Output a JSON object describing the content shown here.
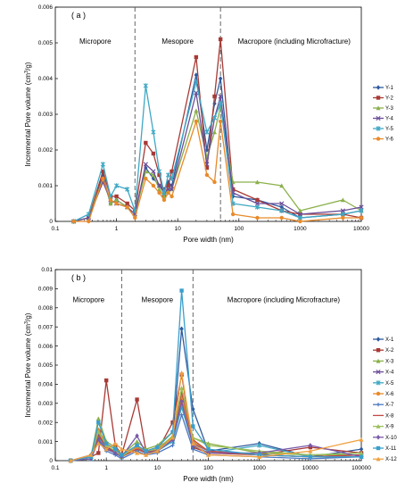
{
  "chart_data": [
    {
      "type": "line",
      "panel_label": "( a )",
      "xlabel": "Pore width (nm)",
      "ylabel_main": "Incremental Pore volume (cm",
      "ylabel_sup": "3",
      "ylabel_end": "/g)",
      "xscale": "log",
      "xlim": [
        0.1,
        10000
      ],
      "ylim": [
        0,
        0.006
      ],
      "xticks": [
        0.1,
        1,
        10,
        100,
        1000,
        10000
      ],
      "xtick_labels": [
        "0.1",
        "1",
        "10",
        "100",
        "1000",
        "10000"
      ],
      "yticks": [
        0,
        0.001,
        0.002,
        0.003,
        0.004,
        0.005,
        0.006
      ],
      "ytick_labels": [
        "0",
        "0.001",
        "0.002",
        "0.003",
        "0.004",
        "0.005",
        "0.006"
      ],
      "dividers": [
        2,
        50
      ],
      "regions": [
        {
          "label": "Micropore",
          "x": 0.45
        },
        {
          "label": "Mesopore",
          "x": 10
        },
        {
          "label": "Macropore (including Microfracture)",
          "x": 800
        }
      ],
      "legend_position": "right",
      "series": [
        {
          "name": "Y-1",
          "color": "#2e5a9e",
          "marker": "diamond",
          "x": [
            0.2,
            0.35,
            0.6,
            0.8,
            1,
            1.5,
            2,
            3,
            4,
            5,
            6,
            7,
            8,
            20,
            30,
            40,
            50,
            80,
            200,
            500,
            1000,
            5000,
            10000
          ],
          "y": [
            0,
            0.0001,
            0.0013,
            0.0005,
            0.0006,
            0.0004,
            0.0002,
            0.0015,
            0.0012,
            0.001,
            0.0009,
            0.0011,
            0.001,
            0.0041,
            0.002,
            0.0033,
            0.004,
            0.0007,
            0.0006,
            0.0004,
            0.0001,
            0.0002,
            0.0003
          ]
        },
        {
          "name": "Y-2",
          "color": "#a83a36",
          "marker": "square",
          "x": [
            0.2,
            0.35,
            0.6,
            0.8,
            1,
            1.5,
            2,
            3,
            4,
            5,
            6,
            7,
            8,
            20,
            30,
            40,
            50,
            80,
            200,
            500,
            1000,
            5000,
            10000
          ],
          "y": [
            0,
            0.0001,
            0.0014,
            0.0007,
            0.0007,
            0.0005,
            0.0003,
            0.0022,
            0.0019,
            0.0013,
            0.0007,
            0.001,
            0.0014,
            0.0046,
            0.0015,
            0.0035,
            0.0051,
            0.0009,
            0.0006,
            0.0003,
            0.0002,
            0.0002,
            0.0001
          ]
        },
        {
          "name": "Y-3",
          "color": "#8ab04a",
          "marker": "triangle",
          "x": [
            0.2,
            0.35,
            0.6,
            0.8,
            1,
            1.5,
            2,
            3,
            4,
            5,
            6,
            7,
            8,
            20,
            30,
            40,
            50,
            80,
            200,
            500,
            1000,
            5000,
            10000
          ],
          "y": [
            0,
            0.0001,
            0.0012,
            0.0005,
            0.0006,
            0.0004,
            0.0002,
            0.0014,
            0.0013,
            0.0009,
            0.0007,
            0.0009,
            0.0009,
            0.0031,
            0.0018,
            0.0025,
            0.0032,
            0.0011,
            0.0011,
            0.001,
            0.0003,
            0.0006,
            0.0003
          ]
        },
        {
          "name": "Y-4",
          "color": "#6b4d99",
          "marker": "x",
          "x": [
            0.2,
            0.35,
            0.6,
            0.8,
            1,
            1.5,
            2,
            3,
            4,
            5,
            6,
            7,
            8,
            20,
            30,
            40,
            50,
            80,
            200,
            500,
            1000,
            5000,
            10000
          ],
          "y": [
            0,
            0.0001,
            0.0011,
            0.0006,
            0.0005,
            0.0004,
            0.0002,
            0.0016,
            0.0014,
            0.001,
            0.0008,
            0.0009,
            0.0009,
            0.0036,
            0.0016,
            0.0029,
            0.0035,
            0.0008,
            0.0005,
            0.0005,
            0.0002,
            0.0003,
            0.0004
          ]
        },
        {
          "name": "Y-5",
          "color": "#3fa8c4",
          "marker": "star",
          "x": [
            0.2,
            0.35,
            0.6,
            0.8,
            1,
            1.5,
            2,
            3,
            4,
            5,
            6,
            7,
            8,
            20,
            30,
            40,
            50,
            80,
            200,
            500,
            1000,
            5000,
            10000
          ],
          "y": [
            0,
            0.0002,
            0.0016,
            0.0007,
            0.001,
            0.0009,
            0.0003,
            0.0038,
            0.0025,
            0.0014,
            0.0008,
            0.0013,
            0.0012,
            0.0039,
            0.0025,
            0.0029,
            0.0033,
            0.0005,
            0.0004,
            0.0003,
            0.0001,
            0.0002,
            0.0003
          ]
        },
        {
          "name": "Y-6",
          "color": "#e88a2a",
          "marker": "circle",
          "x": [
            0.2,
            0.35,
            0.6,
            0.8,
            1,
            1.5,
            2,
            3,
            4,
            5,
            6,
            7,
            8,
            20,
            30,
            40,
            50,
            80,
            200,
            500,
            1000,
            5000,
            10000
          ],
          "y": [
            0,
            0,
            0.0012,
            0.0006,
            0.0005,
            0.0004,
            0.0001,
            0.0012,
            0.001,
            0.0008,
            0.0006,
            0.0008,
            0.0007,
            0.0028,
            0.0013,
            0.0011,
            0.0028,
            0.0002,
            0.0001,
            0.0001,
            0,
            0.0001,
            0.0001
          ]
        }
      ]
    },
    {
      "type": "line",
      "panel_label": "( b )",
      "xlabel": "Pore width (nm)",
      "ylabel_main": "Incremental Pore volume (cm",
      "ylabel_sup": "3",
      "ylabel_end": "/g)",
      "xscale": "log",
      "xlim": [
        0.1,
        100000
      ],
      "ylim": [
        0,
        0.01
      ],
      "xticks": [
        0.1,
        1,
        10,
        100,
        1000,
        10000,
        100000
      ],
      "xtick_labels": [
        "0.1",
        "1",
        "10",
        "100",
        "1000",
        "10000",
        "100000"
      ],
      "yticks": [
        0,
        0.001,
        0.002,
        0.003,
        0.004,
        0.005,
        0.006,
        0.007,
        0.008,
        0.009,
        0.01
      ],
      "ytick_labels": [
        "0",
        "0.001",
        "0.002",
        "0.003",
        "0.004",
        "0.005",
        "0.006",
        "0.007",
        "0.008",
        "0.009",
        "0.01"
      ],
      "dividers": [
        2,
        50
      ],
      "regions": [
        {
          "label": "Micropore",
          "x": 0.45
        },
        {
          "label": "Mesopore",
          "x": 10
        },
        {
          "label": "Macropore (including Microfracture)",
          "x": 3000
        }
      ],
      "legend_position": "right",
      "series": [
        {
          "name": "X-1",
          "color": "#2e5a9e",
          "marker": "diamond",
          "x": [
            0.2,
            0.5,
            0.7,
            1,
            1.5,
            2,
            4,
            6,
            10,
            20,
            30,
            50,
            100,
            1000,
            10000,
            100000
          ],
          "y": [
            0,
            0.0003,
            0.0016,
            0.0008,
            0.0004,
            0.0002,
            0.0008,
            0.0005,
            0.0006,
            0.0012,
            0.0069,
            0.0027,
            0.0005,
            0.0009,
            0.0002,
            0.0006
          ]
        },
        {
          "name": "X-2",
          "color": "#a83a36",
          "marker": "square",
          "x": [
            0.2,
            0.5,
            0.7,
            1,
            1.5,
            2,
            4,
            6,
            10,
            20,
            30,
            50,
            100,
            1000,
            10000,
            100000
          ],
          "y": [
            0,
            0.0002,
            0.0004,
            0.0042,
            0.0008,
            0.0003,
            0.0032,
            0.0005,
            0.0005,
            0.002,
            0.0045,
            0.0007,
            0.0004,
            0.0003,
            0.0007,
            0.0004
          ]
        },
        {
          "name": "X-3",
          "color": "#8ab04a",
          "marker": "triangle",
          "x": [
            0.2,
            0.5,
            0.7,
            1,
            1.5,
            2,
            4,
            6,
            10,
            20,
            30,
            50,
            100,
            1000,
            10000,
            100000
          ],
          "y": [
            0,
            0.0002,
            0.0022,
            0.001,
            0.0007,
            0.0003,
            0.001,
            0.0006,
            0.0008,
            0.0015,
            0.0036,
            0.0012,
            0.0009,
            0.0004,
            0.0003,
            0.0003
          ]
        },
        {
          "name": "X-4",
          "color": "#6b4d99",
          "marker": "x",
          "x": [
            0.2,
            0.5,
            0.7,
            1,
            1.5,
            2,
            4,
            6,
            10,
            20,
            30,
            50,
            100,
            1000,
            10000,
            100000
          ],
          "y": [
            0,
            0.0002,
            0.0014,
            0.0007,
            0.0005,
            0.0002,
            0.0007,
            0.0004,
            0.0006,
            0.001,
            0.003,
            0.0009,
            0.0005,
            0.0003,
            0.0002,
            0.0003
          ]
        },
        {
          "name": "X-5",
          "color": "#3fa8c4",
          "marker": "star",
          "x": [
            0.2,
            0.5,
            0.7,
            1,
            1.5,
            2,
            4,
            6,
            10,
            20,
            30,
            50,
            100,
            1000,
            10000,
            100000
          ],
          "y": [
            0,
            0.0001,
            0.0012,
            0.0006,
            0.0004,
            0.0002,
            0.0006,
            0.0004,
            0.0005,
            0.001,
            0.0028,
            0.0008,
            0.0004,
            0.0008,
            0.0002,
            0.0002
          ]
        },
        {
          "name": "X-6",
          "color": "#e88a2a",
          "marker": "circle",
          "x": [
            0.2,
            0.5,
            0.7,
            1,
            1.5,
            2,
            4,
            6,
            10,
            20,
            30,
            50,
            100,
            1000,
            10000,
            100000
          ],
          "y": [
            0,
            0.0002,
            0.0016,
            0.0009,
            0.0006,
            0.0002,
            0.0007,
            0.0005,
            0.0007,
            0.0012,
            0.0033,
            0.001,
            0.0005,
            0.0003,
            0.0002,
            0.0002
          ]
        },
        {
          "name": "X-7",
          "color": "#4a78c0",
          "marker": "plus",
          "x": [
            0.2,
            0.5,
            0.7,
            1,
            1.5,
            2,
            4,
            6,
            10,
            20,
            30,
            50,
            100,
            1000,
            10000,
            100000
          ],
          "y": [
            0,
            0.0001,
            0.001,
            0.0005,
            0.0003,
            0.0001,
            0.0005,
            0.0003,
            0.0004,
            0.0008,
            0.0024,
            0.0006,
            0.0003,
            0.0002,
            0.0001,
            0.0002
          ]
        },
        {
          "name": "X-8",
          "color": "#c24a44",
          "marker": "none",
          "x": [
            0.2,
            0.5,
            0.7,
            1,
            1.5,
            2,
            4,
            6,
            10,
            20,
            30,
            50,
            100,
            1000,
            10000,
            100000
          ],
          "y": [
            0,
            0.0002,
            0.0013,
            0.0007,
            0.0004,
            0.0002,
            0.0006,
            0.0004,
            0.0006,
            0.0011,
            0.0036,
            0.0011,
            0.0005,
            0.0003,
            0.0002,
            0.0003
          ]
        },
        {
          "name": "X-9",
          "color": "#9cbf5a",
          "marker": "triangle",
          "x": [
            0.2,
            0.5,
            0.7,
            1,
            1.5,
            2,
            4,
            6,
            10,
            20,
            30,
            50,
            100,
            1000,
            10000,
            100000
          ],
          "y": [
            0,
            0.0002,
            0.0015,
            0.0008,
            0.0005,
            0.0002,
            0.0008,
            0.0005,
            0.0006,
            0.0013,
            0.0038,
            0.0012,
            0.0008,
            0.0005,
            0.0003,
            0.0004
          ]
        },
        {
          "name": "X-10",
          "color": "#7a5aa8",
          "marker": "diamond",
          "x": [
            0.2,
            0.5,
            0.7,
            1,
            1.5,
            2,
            4,
            6,
            10,
            20,
            30,
            50,
            100,
            1000,
            10000,
            100000
          ],
          "y": [
            0,
            0.0001,
            0.0011,
            0.0006,
            0.0004,
            0.0002,
            0.0013,
            0.0004,
            0.0005,
            0.0011,
            0.0031,
            0.0008,
            0.0004,
            0.0004,
            0.0008,
            0.0002
          ]
        },
        {
          "name": "X-11",
          "color": "#3a9ecb",
          "marker": "square",
          "x": [
            0.2,
            0.5,
            0.7,
            1,
            1.5,
            2,
            4,
            6,
            10,
            20,
            30,
            50,
            100,
            1000,
            10000,
            100000
          ],
          "y": [
            0,
            0.0002,
            0.002,
            0.0009,
            0.0006,
            0.0003,
            0.0008,
            0.0005,
            0.0007,
            0.0015,
            0.0089,
            0.0018,
            0.0006,
            0.0003,
            0.0002,
            0.0002
          ]
        },
        {
          "name": "X-12",
          "color": "#f0a040",
          "marker": "triangle",
          "x": [
            0.2,
            0.5,
            0.7,
            1,
            1.5,
            2,
            4,
            6,
            10,
            20,
            30,
            50,
            100,
            1000,
            10000,
            100000
          ],
          "y": [
            0,
            0.0003,
            0.0009,
            0.0006,
            0.0009,
            0.0006,
            0.0004,
            0.0003,
            0.0005,
            0.0012,
            0.0046,
            0.0009,
            0.0003,
            0.0002,
            0.0005,
            0.0011
          ]
        }
      ]
    }
  ]
}
